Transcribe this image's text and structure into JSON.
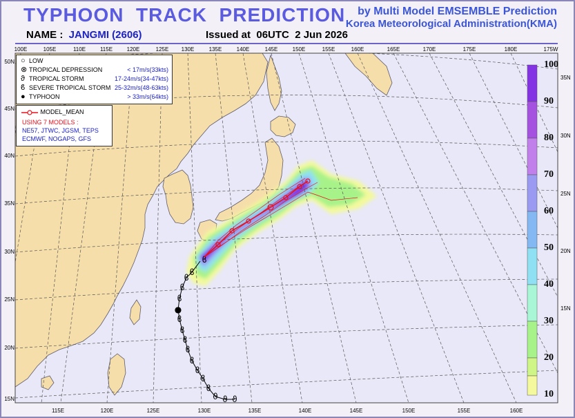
{
  "header": {
    "title": "TYPHOON  TRACK  PREDICTION",
    "credit_line1": "by Multi Model EMSEMBLE Prediction",
    "credit_line2": "Korea Meteorological Administration(KMA)",
    "name_label": "NAME :",
    "name_value": "JANGMI (2606)",
    "issued": "Issued at  06UTC  2 Jun 2026"
  },
  "axes": {
    "top_lon_labels": [
      "100E",
      "105E",
      "110E",
      "115E",
      "120E",
      "125E",
      "130E",
      "135E",
      "140E",
      "145E",
      "150E",
      "155E",
      "160E",
      "165E",
      "170E",
      "175E",
      "180E",
      "175W"
    ],
    "bottom_lon_labels": [
      "115E",
      "120E",
      "125E",
      "130E",
      "135E",
      "140E",
      "145E",
      "150E",
      "155E",
      "160E"
    ],
    "left_lat_labels": [
      "50N",
      "45N",
      "40N",
      "35N",
      "30N",
      "25N",
      "20N",
      "15N"
    ],
    "right_lat_labels": [
      "35N",
      "30N",
      "25N",
      "20N",
      "15N"
    ]
  },
  "legend": {
    "items": [
      {
        "symbol": "○",
        "label": "LOW",
        "speed": ""
      },
      {
        "symbol": "⊗",
        "label": "TROPICAL DEPRESSION",
        "speed": "< 17m/s(33kts)"
      },
      {
        "symbol": "ϑ",
        "label": "TROPICAL STORM",
        "speed": "17-24m/s(34-47kts)"
      },
      {
        "symbol": "ϐ",
        "label": "SEVERE TROPICAL STORM",
        "speed": "25-32m/s(48-63kts)"
      },
      {
        "symbol": "●",
        "label": "TYPHOON",
        "speed": "> 33m/s(64kts)"
      }
    ],
    "model_mean": "MODEL_MEAN",
    "using": "USING 7 MODELS :",
    "models_line1": "NE57, JTWC, JGSM, TEPS",
    "models_line2": "ECMWF, NOGAPS, GFS",
    "colors": {
      "mean": "#e8101c",
      "using": "#e8101c",
      "models": "#1c22c8"
    }
  },
  "colorbar": {
    "labels": [
      "100",
      "90",
      "80",
      "70",
      "60",
      "50",
      "40",
      "30",
      "20",
      "10"
    ],
    "colors": [
      "#8433e4",
      "#a552e0",
      "#c07fea",
      "#9b9af2",
      "#83b8f2",
      "#8fe0f2",
      "#a8f6d6",
      "#a8f28a",
      "#cef586",
      "#f3f99c"
    ]
  },
  "colors": {
    "land": "#f5deaa",
    "sea": "#e8e8f8",
    "coast": "#5e5a6a",
    "grid": "#555555",
    "title": "#5b5be0",
    "credit": "#3b55d8"
  }
}
